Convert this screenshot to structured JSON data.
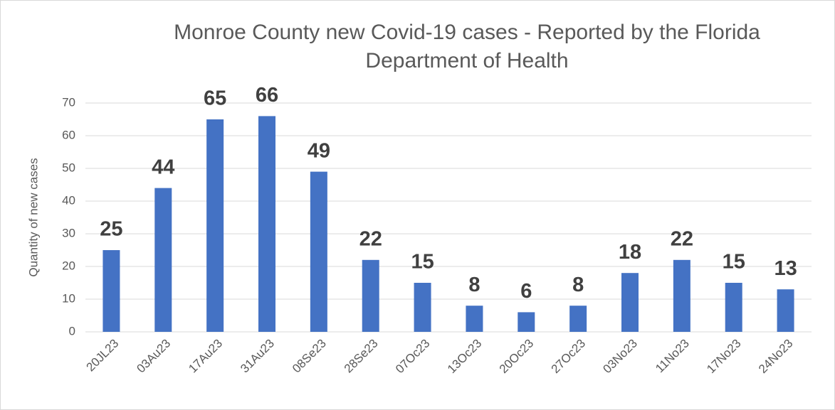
{
  "chart_data": {
    "type": "bar",
    "title": "Monroe County new Covid-19 cases - Reported by the Florida Department of Health",
    "y_label": "Quantity of new cases",
    "categories": [
      "20JL23",
      "03Au23",
      "17Au23",
      "31Au23",
      "08Se23",
      "28Se23",
      "07Oc23",
      "13Oc23",
      "20Oc23",
      "27Oc23",
      "03No23",
      "11No23",
      "17No23",
      "24No23"
    ],
    "values": [
      25,
      44,
      65,
      66,
      49,
      22,
      15,
      8,
      6,
      8,
      18,
      22,
      15,
      13
    ],
    "color": "#4472c4",
    "ylim": [
      0,
      70
    ],
    "yticks": [
      0,
      10,
      20,
      30,
      40,
      50,
      60,
      70
    ],
    "grid": true
  }
}
